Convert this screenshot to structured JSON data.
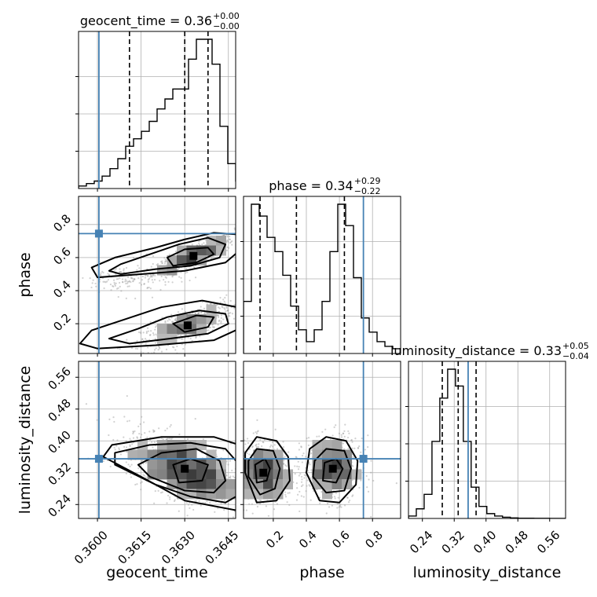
{
  "chart_data": {
    "type": "corner",
    "parameters": [
      "geocent_time",
      "phase",
      "luminosity_distance"
    ],
    "axis_labels": {
      "geocent_time": "geocent_time",
      "phase": "phase",
      "luminosity_distance": "luminosity_distance"
    },
    "ranges": {
      "geocent_time": [
        0.35935,
        0.36475
      ],
      "phase": [
        0.02,
        0.97
      ],
      "luminosity_distance": [
        0.205,
        0.6
      ]
    },
    "ticks": {
      "geocent_time": [
        {
          "v": 0.36,
          "label": "0.3600"
        },
        {
          "v": 0.3615,
          "label": "0.3615"
        },
        {
          "v": 0.363,
          "label": "0.3630"
        },
        {
          "v": 0.3645,
          "label": "0.3645"
        }
      ],
      "phase": [
        {
          "v": 0.2,
          "label": "0.2"
        },
        {
          "v": 0.4,
          "label": "0.4"
        },
        {
          "v": 0.6,
          "label": "0.6"
        },
        {
          "v": 0.8,
          "label": "0.8"
        }
      ],
      "luminosity_distance": [
        {
          "v": 0.24,
          "label": "0.24"
        },
        {
          "v": 0.32,
          "label": "0.32"
        },
        {
          "v": 0.4,
          "label": "0.40"
        },
        {
          "v": 0.48,
          "label": "0.48"
        },
        {
          "v": 0.56,
          "label": "0.56"
        }
      ]
    },
    "truths": {
      "geocent_time": 0.36005,
      "phase": 0.745,
      "luminosity_distance": 0.355
    },
    "titles": [
      {
        "param": "geocent_time",
        "text": "geocent_time = 0.36",
        "plus": "+0.00",
        "minus": "−0.00"
      },
      {
        "param": "phase",
        "text": "phase = 0.34",
        "plus": "+0.29",
        "minus": "−0.22"
      },
      {
        "param": "luminosity_distance",
        "text": "luminosity_distance = 0.33",
        "plus": "+0.05",
        "minus": "−0.04"
      }
    ],
    "quantiles": {
      "geocent_time": [
        0.3611,
        0.363,
        0.3638
      ],
      "phase": [
        0.12,
        0.34,
        0.63
      ],
      "luminosity_distance": [
        0.29,
        0.33,
        0.375
      ]
    },
    "histograms": {
      "geocent_time": {
        "edges_start": 0.35935,
        "bin_width": 0.00027,
        "counts": [
          1,
          2,
          3,
          5,
          8,
          12,
          17,
          20,
          23,
          27,
          32,
          36,
          40,
          40,
          52,
          60,
          60,
          50,
          25,
          10,
          3
        ]
      },
      "phase": {
        "edges_start": 0.02,
        "bin_width": 0.0475,
        "counts": [
          22,
          63,
          58,
          49,
          43,
          33,
          20,
          10,
          5,
          10,
          22,
          43,
          63,
          54,
          32,
          15,
          9,
          5,
          3,
          2
        ]
      },
      "luminosity_distance": {
        "edges_start": 0.205,
        "bin_width": 0.0197,
        "counts": [
          1,
          4,
          10,
          32,
          50,
          62,
          55,
          32,
          13,
          5,
          2,
          1,
          0.5,
          0.2,
          0.1,
          0.1,
          0.05,
          0.05,
          0.02,
          0.02
        ]
      }
    },
    "clusters": {
      "geocent_time|phase": [
        {
          "x": 0.3633,
          "y": 0.61,
          "sx": 0.0007,
          "sy": 0.06,
          "rho": 0.85,
          "n": 600
        },
        {
          "x": 0.3631,
          "y": 0.19,
          "sx": 0.0008,
          "sy": 0.07,
          "rho": 0.75,
          "n": 600
        },
        {
          "x": 0.361,
          "y": 0.47,
          "sx": 0.0008,
          "sy": 0.05,
          "rho": 0.2,
          "n": 150
        }
      ],
      "geocent_time|luminosity_distance": [
        {
          "x": 0.363,
          "y": 0.33,
          "sx": 0.001,
          "sy": 0.045,
          "rho": -0.55,
          "n": 1100
        }
      ],
      "phase|luminosity_distance": [
        {
          "x": 0.14,
          "y": 0.32,
          "sx": 0.09,
          "sy": 0.04,
          "rho": 0.0,
          "n": 600
        },
        {
          "x": 0.56,
          "y": 0.33,
          "sx": 0.09,
          "sy": 0.04,
          "rho": 0.0,
          "n": 600
        }
      ]
    },
    "contours": {
      "geocent_time|phase": [
        [
          [
            0.3626,
            0.55
          ],
          [
            0.3634,
            0.57
          ],
          [
            0.364,
            0.62
          ],
          [
            0.3638,
            0.66
          ],
          [
            0.363,
            0.65
          ],
          [
            0.3624,
            0.6
          ]
        ],
        [
          [
            0.3608,
            0.5
          ],
          [
            0.362,
            0.53
          ],
          [
            0.3632,
            0.55
          ],
          [
            0.3642,
            0.6
          ],
          [
            0.3644,
            0.68
          ],
          [
            0.3638,
            0.72
          ],
          [
            0.3628,
            0.68
          ],
          [
            0.3618,
            0.62
          ],
          [
            0.3608,
            0.56
          ],
          [
            0.3604,
            0.52
          ]
        ],
        [
          [
            0.36,
            0.48
          ],
          [
            0.3615,
            0.5
          ],
          [
            0.363,
            0.52
          ],
          [
            0.3644,
            0.57
          ],
          [
            0.365,
            0.66
          ],
          [
            0.3648,
            0.74
          ],
          [
            0.364,
            0.75
          ],
          [
            0.363,
            0.71
          ],
          [
            0.362,
            0.66
          ],
          [
            0.3606,
            0.6
          ],
          [
            0.3598,
            0.54
          ]
        ],
        [
          [
            0.363,
            0.15
          ],
          [
            0.3638,
            0.18
          ],
          [
            0.364,
            0.24
          ],
          [
            0.3634,
            0.25
          ],
          [
            0.3626,
            0.2
          ]
        ],
        [
          [
            0.3611,
            0.08
          ],
          [
            0.3625,
            0.11
          ],
          [
            0.3638,
            0.14
          ],
          [
            0.3645,
            0.2
          ],
          [
            0.3644,
            0.26
          ],
          [
            0.3635,
            0.28
          ],
          [
            0.3624,
            0.24
          ],
          [
            0.3614,
            0.17
          ],
          [
            0.3604,
            0.11
          ]
        ],
        [
          [
            0.36,
            0.05
          ],
          [
            0.362,
            0.07
          ],
          [
            0.364,
            0.1
          ],
          [
            0.365,
            0.18
          ],
          [
            0.3648,
            0.3
          ],
          [
            0.3636,
            0.34
          ],
          [
            0.3622,
            0.3
          ],
          [
            0.361,
            0.23
          ],
          [
            0.3598,
            0.16
          ],
          [
            0.3594,
            0.08
          ]
        ]
      ],
      "geocent_time|luminosity_distance": [
        [
          [
            0.3628,
            0.295
          ],
          [
            0.3636,
            0.3
          ],
          [
            0.3638,
            0.34
          ],
          [
            0.3632,
            0.355
          ],
          [
            0.3626,
            0.34
          ]
        ],
        [
          [
            0.3618,
            0.31
          ],
          [
            0.363,
            0.275
          ],
          [
            0.364,
            0.27
          ],
          [
            0.3644,
            0.3
          ],
          [
            0.3642,
            0.35
          ],
          [
            0.3634,
            0.38
          ],
          [
            0.3622,
            0.37
          ],
          [
            0.3614,
            0.34
          ]
        ],
        [
          [
            0.3606,
            0.34
          ],
          [
            0.362,
            0.29
          ],
          [
            0.3632,
            0.26
          ],
          [
            0.3644,
            0.245
          ],
          [
            0.365,
            0.27
          ],
          [
            0.365,
            0.33
          ],
          [
            0.3644,
            0.38
          ],
          [
            0.3632,
            0.395
          ],
          [
            0.3618,
            0.39
          ],
          [
            0.3606,
            0.37
          ]
        ],
        [
          [
            0.3602,
            0.36
          ],
          [
            0.3615,
            0.31
          ],
          [
            0.363,
            0.25
          ],
          [
            0.3648,
            0.225
          ],
          [
            0.3655,
            0.28
          ],
          [
            0.3653,
            0.38
          ],
          [
            0.364,
            0.41
          ],
          [
            0.3622,
            0.41
          ],
          [
            0.3605,
            0.39
          ]
        ]
      ],
      "phase|luminosity_distance": [
        [
          [
            0.1,
            0.295
          ],
          [
            0.16,
            0.3
          ],
          [
            0.18,
            0.33
          ],
          [
            0.15,
            0.355
          ],
          [
            0.09,
            0.34
          ]
        ],
        [
          [
            0.05,
            0.31
          ],
          [
            0.12,
            0.265
          ],
          [
            0.21,
            0.28
          ],
          [
            0.24,
            0.33
          ],
          [
            0.2,
            0.375
          ],
          [
            0.1,
            0.38
          ],
          [
            0.05,
            0.35
          ]
        ],
        [
          [
            0.03,
            0.32
          ],
          [
            0.1,
            0.245
          ],
          [
            0.22,
            0.25
          ],
          [
            0.3,
            0.3
          ],
          [
            0.29,
            0.36
          ],
          [
            0.22,
            0.4
          ],
          [
            0.1,
            0.41
          ],
          [
            0.03,
            0.37
          ]
        ],
        [
          [
            0.5,
            0.3
          ],
          [
            0.58,
            0.295
          ],
          [
            0.62,
            0.33
          ],
          [
            0.58,
            0.355
          ],
          [
            0.51,
            0.345
          ]
        ],
        [
          [
            0.44,
            0.31
          ],
          [
            0.52,
            0.27
          ],
          [
            0.63,
            0.275
          ],
          [
            0.67,
            0.33
          ],
          [
            0.63,
            0.375
          ],
          [
            0.52,
            0.38
          ],
          [
            0.45,
            0.35
          ]
        ],
        [
          [
            0.4,
            0.32
          ],
          [
            0.48,
            0.25
          ],
          [
            0.6,
            0.245
          ],
          [
            0.7,
            0.29
          ],
          [
            0.71,
            0.35
          ],
          [
            0.64,
            0.4
          ],
          [
            0.52,
            0.41
          ],
          [
            0.42,
            0.38
          ]
        ]
      ]
    }
  }
}
